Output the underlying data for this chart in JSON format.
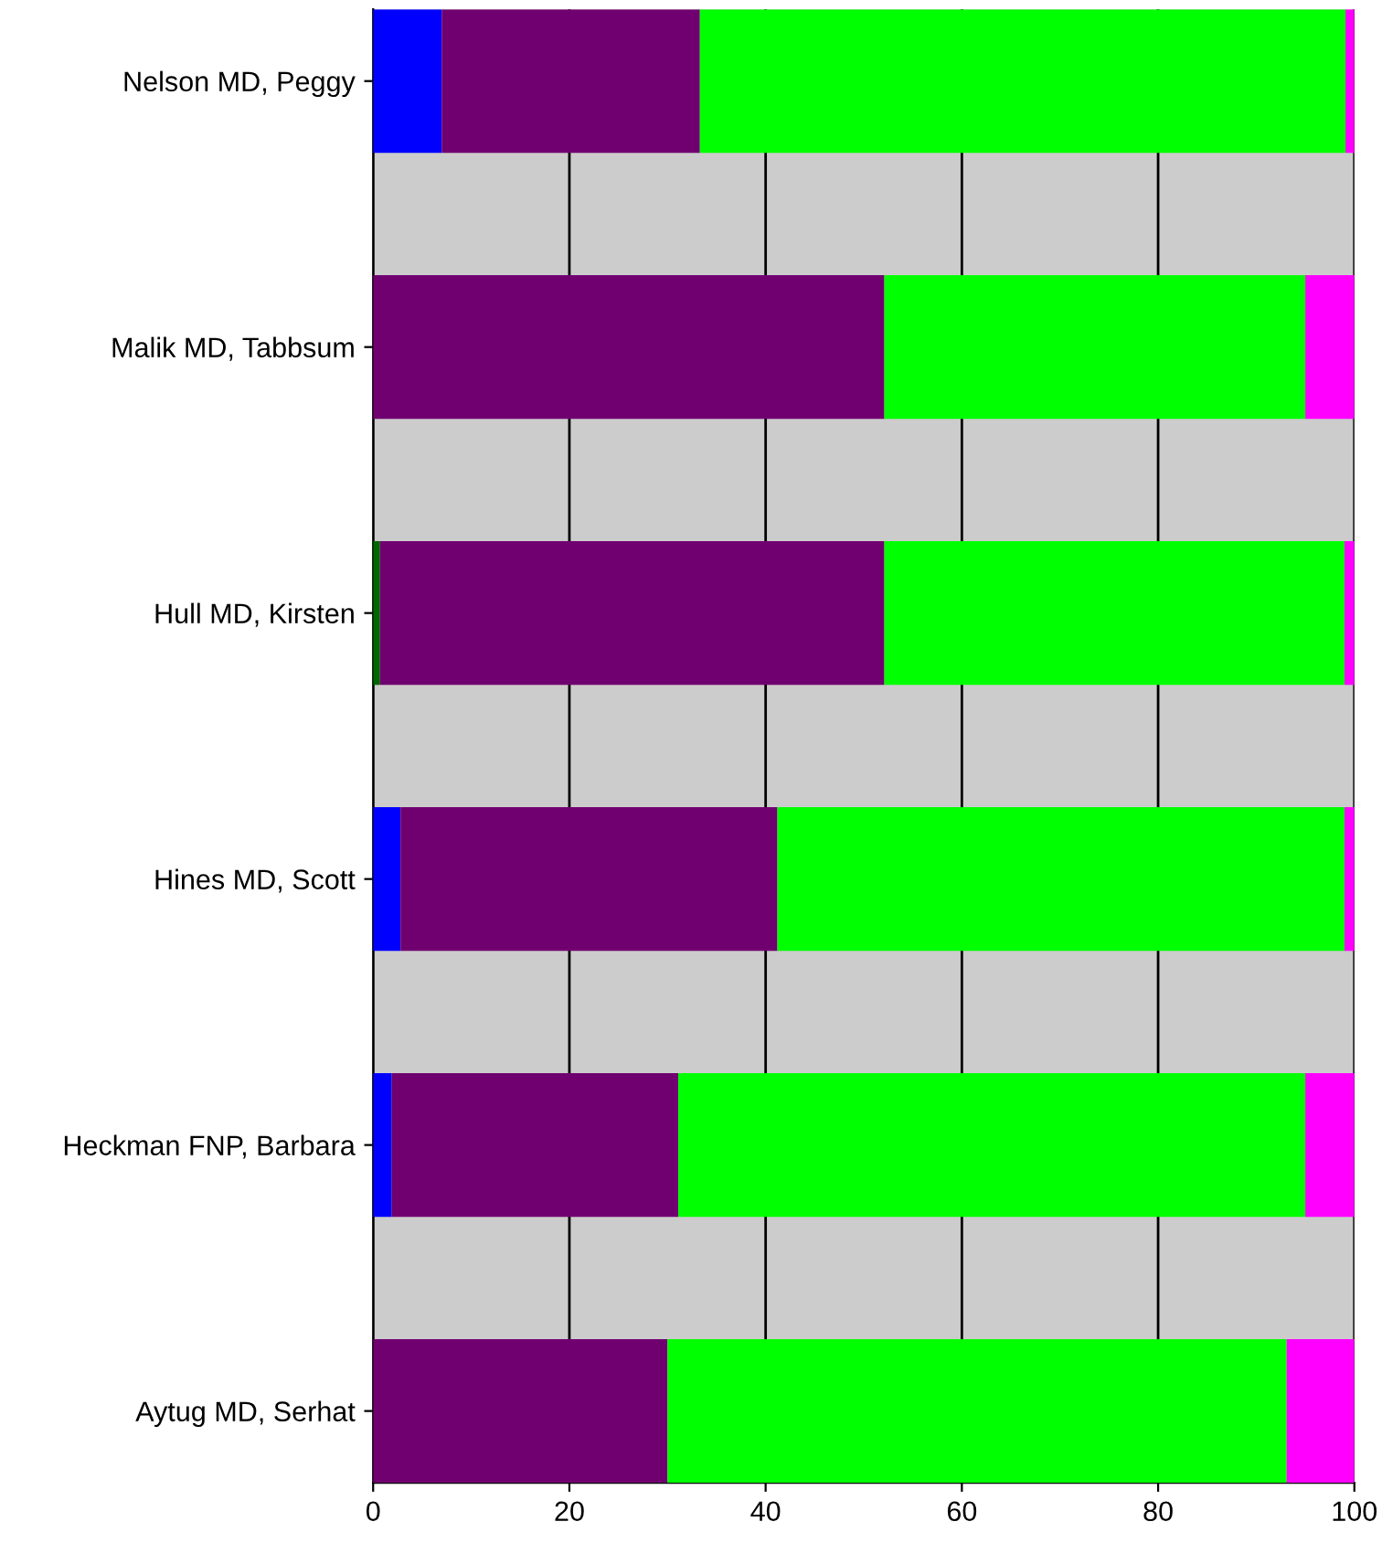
{
  "chart_data": {
    "type": "bar",
    "orientation": "horizontal",
    "stacked": true,
    "categories": [
      "Nelson MD, Peggy",
      "Malik MD, Tabbsum",
      "Hull MD, Kirsten",
      "Hines MD, Scott",
      "Heckman FNP, Barbara",
      "Aytug MD, Serhat"
    ],
    "series": [
      {
        "color": "#0000ff",
        "values": [
          7,
          0,
          0,
          2.8,
          1.9,
          0
        ]
      },
      {
        "color": "#006600",
        "values": [
          0,
          0,
          0.7,
          0,
          0,
          0
        ]
      },
      {
        "color": "#700070",
        "values": [
          26.3,
          52.1,
          51.4,
          38.4,
          29.2,
          30
        ]
      },
      {
        "color": "#00ff00",
        "values": [
          65.8,
          42.9,
          46.9,
          57.8,
          63.9,
          63.1
        ]
      },
      {
        "color": "#ff00ff",
        "values": [
          0.9,
          5,
          1,
          1,
          5,
          6.9
        ]
      }
    ],
    "xlim": [
      0,
      100
    ],
    "xticks": [
      0,
      20,
      40,
      60,
      80,
      100
    ],
    "grid": "x",
    "legend": false
  }
}
